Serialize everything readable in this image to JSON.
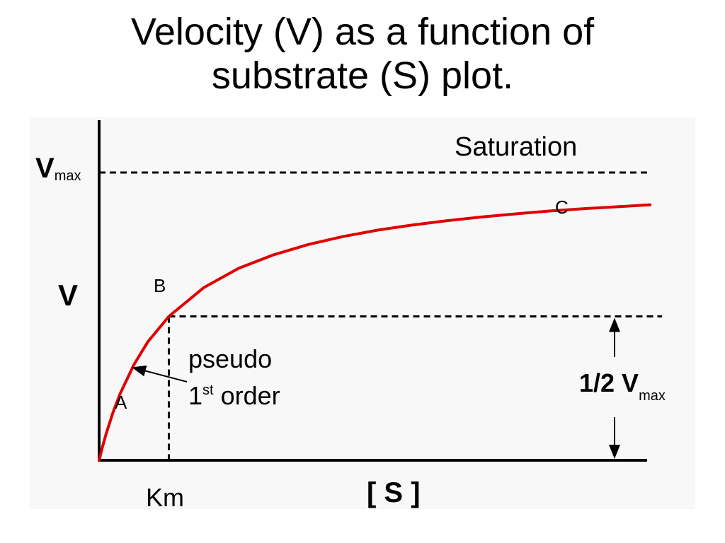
{
  "title_lines": [
    "Velocity (V) as a function of",
    "substrate (S) plot."
  ],
  "chart_data": {
    "type": "line",
    "title": "Velocity (V) as a function of substrate (S) plot.",
    "xlabel": "[ S ]",
    "ylabel": "V",
    "vmax": 1.0,
    "km": 1.0,
    "xlim": [
      0,
      8
    ],
    "ylim": [
      0,
      1.0
    ],
    "grid": false,
    "series": [
      {
        "color": "#e00000",
        "x": [
          0,
          0.05,
          0.1,
          0.2,
          0.3,
          0.5,
          0.7,
          1,
          1.5,
          2,
          2.5,
          3,
          3.5,
          4,
          4.5,
          5,
          5.5,
          6,
          6.5,
          7,
          7.5,
          7.9
        ],
        "y": [
          0,
          0.048,
          0.091,
          0.167,
          0.231,
          0.333,
          0.412,
          0.5,
          0.6,
          0.667,
          0.714,
          0.75,
          0.778,
          0.8,
          0.818,
          0.833,
          0.846,
          0.857,
          0.867,
          0.875,
          0.882,
          0.888
        ]
      }
    ],
    "reference_lines": {
      "vmax_line_y": 1.0,
      "half_vmax_line_y": 0.5,
      "km_line_x": 1.0
    },
    "labels": {
      "vmax": "V",
      "vmax_sub": "max",
      "km": "Km",
      "saturation": "Saturation",
      "point_a": "A",
      "point_b": "B",
      "point_c": "C",
      "pseudo_line1": "pseudo",
      "pseudo_line2_base": "1",
      "pseudo_line2_sup": "st",
      "pseudo_line2_rest": " order",
      "half_prefix": "1/2 V",
      "half_sub": "max"
    },
    "colors": {
      "curve": "#e00000",
      "axes": "#000000",
      "panel": "#f8f8f8"
    }
  }
}
